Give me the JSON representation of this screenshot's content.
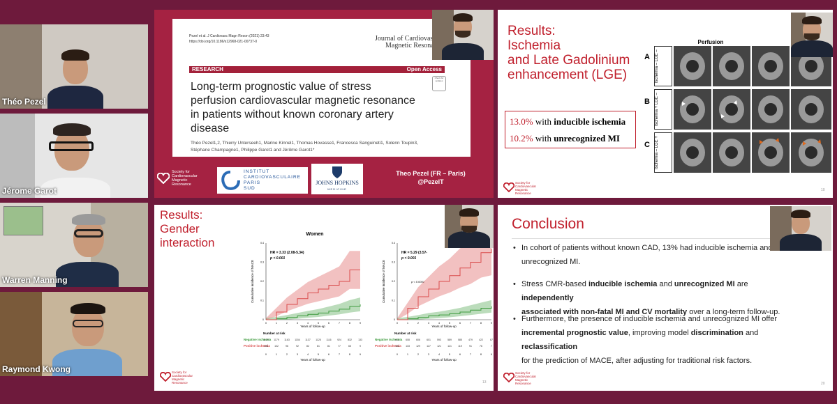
{
  "participants": [
    {
      "name": "Théo Pezel"
    },
    {
      "name": "Jérome Garot"
    },
    {
      "name": "Warren Manning"
    },
    {
      "name": "Raymond Kwong"
    }
  ],
  "slide1": {
    "citation_journal_ref": "Pezel et al. J Cardiovasc Magn Reson",
    "citation_year": "(2021) 23:43",
    "doi": "https://doi.org/10.1186/s12968-021-00737-0",
    "journal_line1": "Journal of Cardiovascu",
    "journal_line2": "Magnetic Resona",
    "research_label": "RESEARCH",
    "open_access": "Open Access",
    "check_updates": "Check for updates",
    "title_line1": "Long-term prognostic value of stress",
    "title_line2": "perfusion cardiovascular magnetic resonance",
    "title_line3": "in patients without known coronary artery",
    "title_line4": "disease",
    "authors_line1": "Théo Pezel1,2, Thierry Unterseeh1, Marine Kinnel1, Thomas Hovasse1, Francesca Sanguineti1, Solenn Toupin3,",
    "authors_line2": "Stéphane Champagne1, Philippe Garot1 and Jérôme Garot1*",
    "society_text": [
      "Society for",
      "Cardiovascular",
      "Magnetic",
      "Resonance"
    ],
    "icps_lines": [
      "Institut",
      "Cardiovasculaire",
      "Paris",
      "Sud"
    ],
    "hopkins_line1": "JOHNS HOPKINS",
    "hopkins_line2": "MEDICINE",
    "presenter": "Theo Pezel (FR – Paris)",
    "handle": "@PezelT"
  },
  "slide2": {
    "title_lines": [
      "Results:",
      "Ischemia",
      "and Late Gadolinium",
      "enhancement (LGE)"
    ],
    "stat1_value": "13.0%",
    "stat1_with": "with",
    "stat1_label": "inducible ischemia",
    "stat2_value": "10.2%",
    "stat2_with": "with",
    "stat2_label": "unrecognized MI",
    "perfusion_header": "Perfusion",
    "rows": [
      {
        "letter": "A",
        "label": "Ischemia – LGE –"
      },
      {
        "letter": "B",
        "label": "Ischemia + LGE –"
      },
      {
        "letter": "C",
        "label": "Ischemia – LGE +"
      }
    ],
    "page_number": "10",
    "society_text": [
      "Society for",
      "Cardiovascular",
      "Magnetic",
      "Resonance"
    ]
  },
  "slide3": {
    "title_lines": [
      "Results:",
      "Gender",
      "interaction"
    ],
    "page_number": "13",
    "society_text": [
      "Society for",
      "Cardiovascular",
      "Magnetic",
      "Resonance"
    ],
    "charts": [
      {
        "panel_title": "Women",
        "hr_text": "HR = 3.33 (2.08-5.34)",
        "p_text": "p < 0.001",
        "ylabel": "Cumulative incidence of MACE",
        "xlabel": "Years of follow-up",
        "number_at_risk": "Number at risk",
        "neg_label": "Negative ischemia",
        "pos_label": "Positive ischemia",
        "neg_counts": [
          "1179",
          "1179",
          "1163",
          "1154",
          "1137",
          "1125",
          "1116",
          "924",
          "832",
          "133"
        ],
        "pos_counts": [
          "108",
          "102",
          "96",
          "92",
          "82",
          "81",
          "81",
          "77",
          "65",
          "9"
        ]
      },
      {
        "panel_title": "",
        "hr_text": "HR = 5.29 (3.57-",
        "p_text": "p < 0.001",
        "p_inner": "p < 0.0001",
        "ylabel": "Cumulative incidence of MACE",
        "xlabel": "Years of follow-up",
        "number_at_risk": "Number at risk",
        "neg_label": "Negative ischemia",
        "pos_label": "Positive ischemia",
        "neg_counts": [
          "613",
          "608",
          "606",
          "601",
          "593",
          "589",
          "585",
          "479",
          "422",
          "67"
        ],
        "pos_counts": [
          "134",
          "133",
          "129",
          "127",
          "121",
          "121",
          "119",
          "91",
          "76",
          "7"
        ]
      }
    ]
  },
  "slide4": {
    "title": "Conclusion",
    "bullet1_a": "In cohort of patients without known CAD, 13% had inducible ischemia and",
    "bullet1_b": "unrecognized MI.",
    "bullet2_a1": "Stress CMR-based ",
    "bullet2_b1": "inducible ischemia",
    "bullet2_a2": " and ",
    "bullet2_b2": "unrecognized MI",
    "bullet2_a3": " are ",
    "bullet2_b3": "independently",
    "bullet2_b4": "associated with non-fatal MI and CV mortality",
    "bullet2_a4": " over a long-term follow-up.",
    "bullet3_a1": "Furthermore, the presence of inducible ischemia and unrecognized MI offer",
    "bullet3_b1": "incremental prognostic value",
    "bullet3_a2": ", improving model ",
    "bullet3_b2": "discrimination",
    "bullet3_a3": " and ",
    "bullet3_b3": "reclassification",
    "bullet3_a4": "for the prediction of MACE, after adjusting for traditional risk factors.",
    "page_number": "20",
    "society_text": [
      "Society for",
      "Cardiovascular",
      "Magnetic",
      "Resonance"
    ]
  },
  "chart_data": [
    {
      "type": "line",
      "title": "Women",
      "xlabel": "Years of follow-up",
      "ylabel": "Cumulative incidence of MACE",
      "x": [
        0,
        1,
        2,
        3,
        4,
        5,
        6,
        7,
        8,
        9
      ],
      "xlim": [
        0,
        9
      ],
      "ylim": [
        0,
        0.4
      ],
      "series": [
        {
          "name": "Negative ischemia",
          "color": "#3c9a3c",
          "values": [
            0,
            0.005,
            0.012,
            0.02,
            0.028,
            0.035,
            0.045,
            0.055,
            0.07,
            0.08
          ]
        },
        {
          "name": "Positive ischemia",
          "color": "#d94c4c",
          "values": [
            0,
            0.04,
            0.08,
            0.11,
            0.14,
            0.16,
            0.18,
            0.2,
            0.26,
            0.26
          ]
        }
      ]
    },
    {
      "type": "line",
      "xlabel": "Years of follow-up",
      "ylabel": "Cumulative incidence of MACE",
      "x": [
        0,
        1,
        2,
        3,
        4,
        5,
        6,
        7,
        8,
        9
      ],
      "xlim": [
        0,
        9
      ],
      "ylim": [
        0,
        0.4
      ],
      "series": [
        {
          "name": "Negative ischemia",
          "color": "#3c9a3c",
          "values": [
            0,
            0.005,
            0.012,
            0.02,
            0.025,
            0.032,
            0.04,
            0.05,
            0.06,
            0.07
          ]
        },
        {
          "name": "Positive ischemia",
          "color": "#d94c4c",
          "values": [
            0,
            0.06,
            0.12,
            0.16,
            0.2,
            0.23,
            0.27,
            0.3,
            0.35,
            0.37
          ]
        }
      ]
    }
  ],
  "colors": {
    "background": "#6e1a3c",
    "accent_red": "#c01f2c",
    "research_bar": "#a3213a",
    "neg_green": "#3c9a3c",
    "pos_red": "#d94c4c"
  }
}
